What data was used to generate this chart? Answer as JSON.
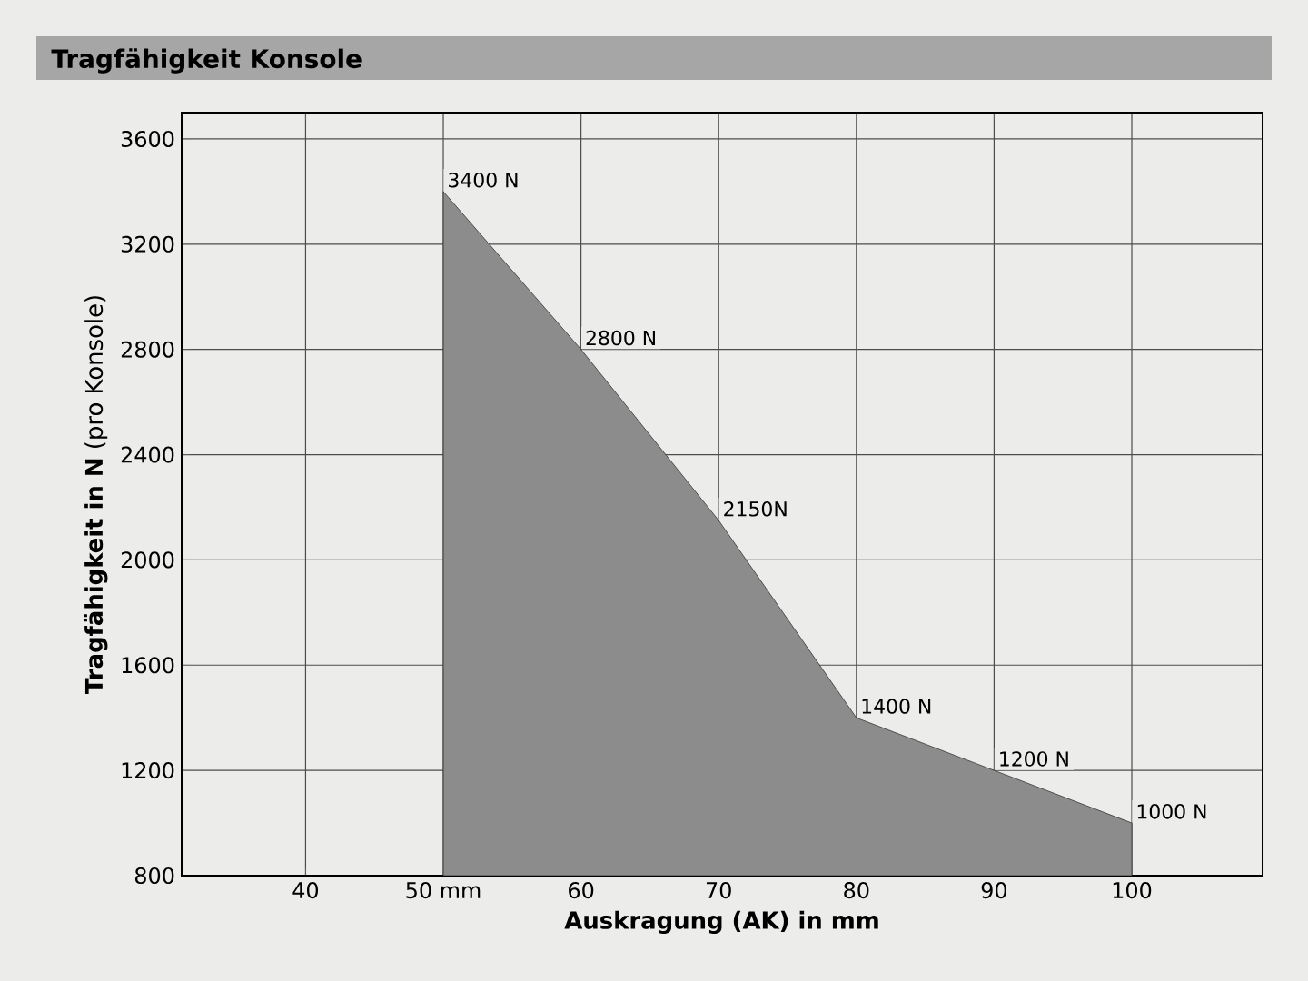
{
  "chart_data": {
    "type": "area",
    "title": "Tragfähigkeit Konsole",
    "xlabel": "Auskragung (AK) in mm",
    "ylabel": "**Tragfähigkeit in N** (pro Konsole)",
    "x": [
      50,
      60,
      70,
      80,
      90,
      100
    ],
    "series": [
      {
        "color": "#8c8c8c",
        "values": [
          3400,
          2800,
          2150,
          1400,
          1200,
          1000
        ]
      }
    ],
    "value_labels": [
      "3400 N",
      "2800 N",
      "2150N",
      "1400 N",
      "1200 N",
      "1000 N"
    ],
    "xlim": [
      31,
      109.5
    ],
    "xticks": [
      40,
      {
        "value": 50,
        "label": "50 mm"
      },
      60,
      70,
      80,
      90,
      100
    ],
    "ylim": [
      800,
      3700
    ],
    "yticks": [
      800,
      1200,
      1600,
      2000,
      2400,
      2800,
      3200,
      3600
    ],
    "grid": true,
    "marker": "none"
  }
}
